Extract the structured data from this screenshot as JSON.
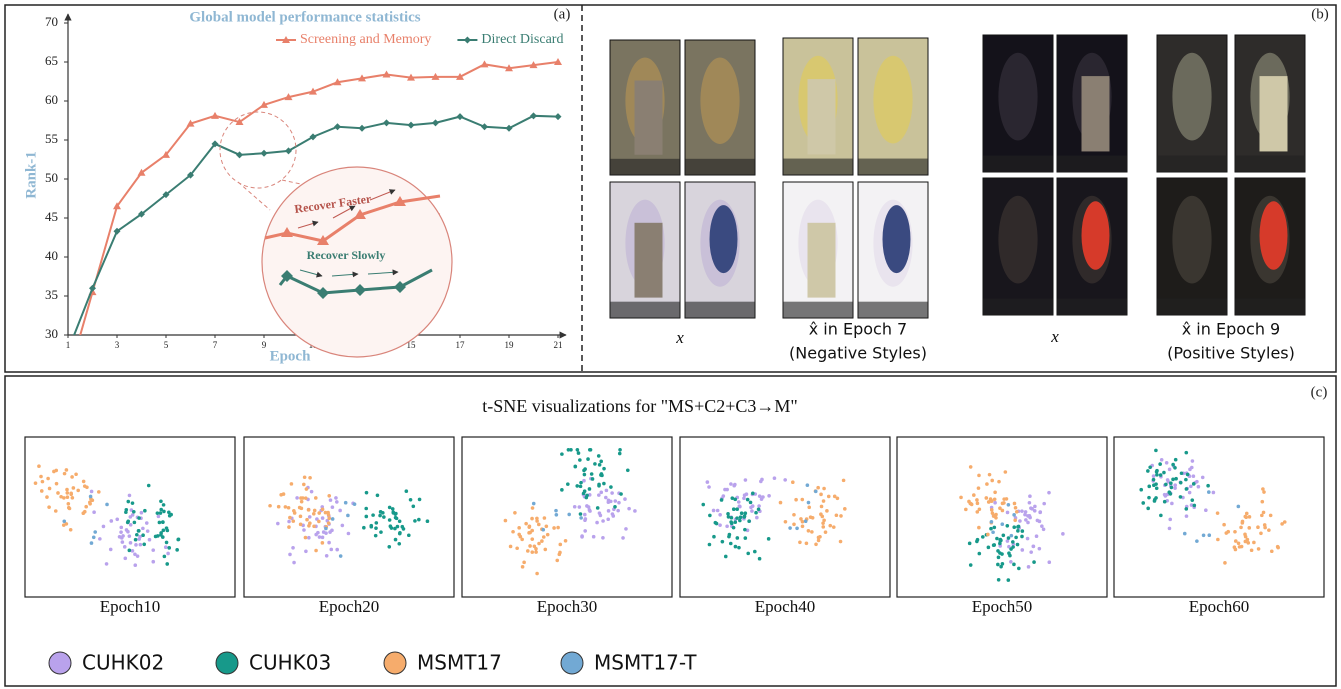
{
  "chart_data": {
    "type": "line",
    "panel_label": "(a)",
    "title": "Global model performance statistics",
    "xlabel": "Epoch",
    "ylabel": "Rank-1",
    "x": [
      1,
      2,
      3,
      4,
      5,
      6,
      7,
      8,
      9,
      10,
      11,
      12,
      13,
      14,
      15,
      16,
      17,
      18,
      19,
      20,
      21
    ],
    "series": [
      {
        "name": "Screening and Memory",
        "color": "#e8806a",
        "marker": "triangle",
        "values": [
          24.5,
          35.5,
          46.5,
          50.8,
          53.1,
          57.1,
          58.1,
          57.3,
          59.5,
          60.5,
          61.2,
          62.4,
          62.9,
          63.4,
          63.0,
          63.1,
          63.1,
          64.7,
          64.2,
          64.6,
          65.0
        ]
      },
      {
        "name": "Direct Discard",
        "color": "#3a7d72",
        "marker": "diamond",
        "values": [
          28.0,
          36.0,
          43.3,
          45.5,
          48.0,
          50.5,
          54.5,
          53.1,
          53.3,
          53.6,
          55.4,
          56.7,
          56.5,
          57.2,
          56.9,
          57.2,
          58.0,
          56.7,
          56.5,
          58.1,
          58.0
        ]
      }
    ],
    "xlim": [
      1,
      21
    ],
    "ylim": [
      30,
      70
    ],
    "xticks": [
      1,
      3,
      5,
      7,
      9,
      11,
      13,
      15,
      17,
      19,
      21
    ],
    "yticks": [
      30,
      35,
      40,
      45,
      50,
      55,
      60,
      65,
      70
    ],
    "legend": "upper right",
    "annotations": [
      "Recover Faster",
      "Recover Slowly"
    ]
  },
  "style_panel": {
    "panel_label": "(b)",
    "groups": [
      {
        "label": "x"
      },
      {
        "label": "x̂ in Epoch 7",
        "sublabel": "(Negative Styles)"
      },
      {
        "label": "x"
      },
      {
        "label": "x̂ in Epoch 9",
        "sublabel": "(Positive Styles)"
      }
    ]
  },
  "tsne_panel": {
    "panel_label": "(c)",
    "title": "t-SNE visualizations for \"MS+C2+C3→M\"",
    "plots": [
      "Epoch10",
      "Epoch20",
      "Epoch30",
      "Epoch40",
      "Epoch50",
      "Epoch60"
    ],
    "legend": [
      {
        "name": "CUHK02",
        "color": "#b9a2ec"
      },
      {
        "name": "CUHK03",
        "color": "#17998a"
      },
      {
        "name": "MSMT17",
        "color": "#f6ac6c"
      },
      {
        "name": "MSMT17-T",
        "color": "#72a9d4"
      }
    ]
  }
}
